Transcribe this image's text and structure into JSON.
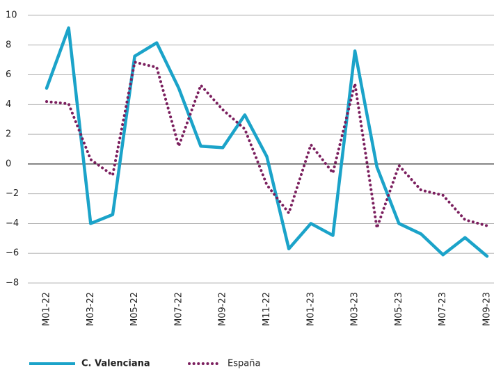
{
  "chart_data": {
    "type": "line",
    "categories": [
      "M01-22",
      null,
      "M03-22",
      null,
      "M05-22",
      null,
      "M07-22",
      null,
      "M09-22",
      null,
      "M11-22",
      null,
      "M01-23",
      null,
      "M03-23",
      null,
      "M05-23",
      null,
      "M07-23",
      null,
      "M09-23"
    ],
    "series": [
      {
        "name": "C. Valenciana",
        "color": "#1ba3c9",
        "style": "solid",
        "values": [
          5.1,
          9.15,
          -4.0,
          -3.4,
          7.25,
          8.15,
          5.1,
          1.2,
          1.1,
          3.3,
          0.5,
          -5.7,
          -4.0,
          -4.8,
          7.6,
          -0.2,
          -4.0,
          -4.7,
          -6.1,
          -4.95,
          -6.2
        ]
      },
      {
        "name": "España",
        "color": "#7b1f5e",
        "style": "dotted",
        "values": [
          4.2,
          4.05,
          0.3,
          -0.75,
          6.85,
          6.5,
          1.2,
          5.3,
          3.65,
          2.35,
          -1.4,
          -3.3,
          1.3,
          -0.6,
          5.4,
          -4.3,
          -0.1,
          -1.75,
          -2.1,
          -3.75,
          -4.15
        ]
      }
    ],
    "ylim": [
      -8,
      10
    ],
    "yticks": [
      {
        "value": -8,
        "label": "−8"
      },
      {
        "value": -6,
        "label": "−6"
      },
      {
        "value": -4,
        "label": "−4"
      },
      {
        "value": -2,
        "label": "−2"
      },
      0,
      2,
      4,
      6,
      8,
      10
    ],
    "grid": true,
    "legend": "bottom"
  }
}
